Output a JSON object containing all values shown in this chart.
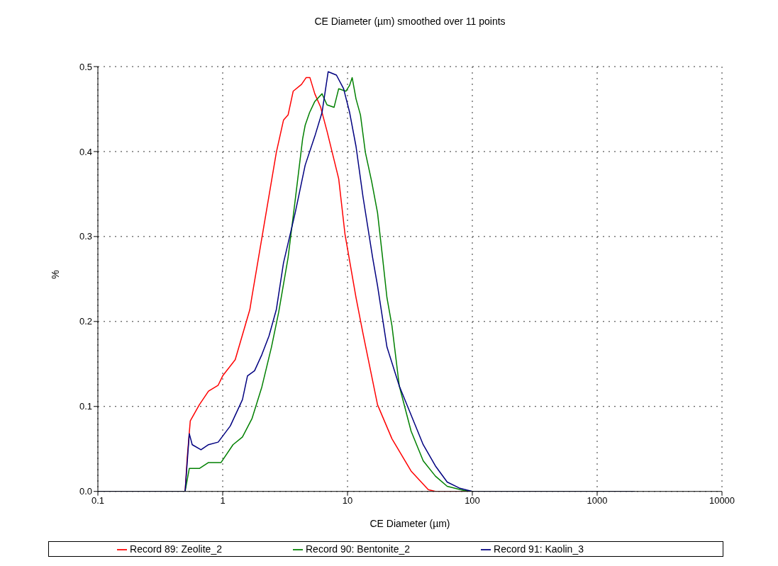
{
  "chart_data": {
    "type": "line",
    "title": "CE Diameter (µm) smoothed over 11 points",
    "xlabel": "CE Diameter (µm)",
    "ylabel": "%",
    "log": "x",
    "xlim": [
      0.1,
      10000
    ],
    "xticks": [
      0.1,
      1,
      10,
      100,
      1000,
      10000
    ],
    "ylim": [
      0,
      0.5
    ],
    "yticks": [
      {
        "value": 0,
        "label": "0.0"
      },
      0.1,
      0.2,
      0.3,
      0.4,
      0.5
    ],
    "grid": true,
    "legend": "bottom",
    "marker": "none",
    "line_style": "solid",
    "series": [
      {
        "name": "Record 89: Zeolite_2",
        "color": "#ff0000",
        "x": [
          0.1,
          0.5,
          0.52,
          0.55,
          0.65,
          0.77,
          0.92,
          1.0,
          1.26,
          1.65,
          1.71,
          2.69,
          3.07,
          3.34,
          3.67,
          4.28,
          4.66,
          5.0,
          5.47,
          6.1,
          6.85,
          8.5,
          9.54,
          11.7,
          13.3,
          17.4,
          22.7,
          32.3,
          44.4,
          50.6,
          2000
        ],
        "values": [
          0,
          0,
          0.04,
          0.083,
          0.102,
          0.118,
          0.125,
          0.136,
          0.155,
          0.214,
          0.228,
          0.399,
          0.437,
          0.443,
          0.471,
          0.479,
          0.487,
          0.487,
          0.468,
          0.452,
          0.424,
          0.368,
          0.303,
          0.228,
          0.186,
          0.102,
          0.062,
          0.024,
          0.002,
          0,
          0
        ]
      },
      {
        "name": "Record 90: Bentonite_2",
        "color": "#008000",
        "x": [
          0.1,
          0.5,
          0.54,
          0.65,
          0.77,
          0.88,
          0.97,
          1.21,
          1.44,
          1.72,
          2.06,
          2.46,
          2.81,
          3.34,
          3.81,
          4.37,
          4.58,
          4.97,
          5.47,
          6.25,
          6.85,
          7.8,
          8.5,
          9.7,
          10.4,
          10.9,
          11.7,
          12.7,
          13.9,
          15.6,
          17.4,
          19.1,
          20.7,
          22.7,
          26.0,
          32.3,
          40.4,
          50.6,
          62.9,
          86,
          100,
          2000
        ],
        "values": [
          0,
          0,
          0.027,
          0.027,
          0.034,
          0.034,
          0.034,
          0.055,
          0.064,
          0.086,
          0.123,
          0.17,
          0.211,
          0.275,
          0.343,
          0.415,
          0.431,
          0.446,
          0.459,
          0.468,
          0.455,
          0.452,
          0.474,
          0.471,
          0.478,
          0.487,
          0.462,
          0.443,
          0.399,
          0.365,
          0.328,
          0.275,
          0.228,
          0.195,
          0.124,
          0.071,
          0.036,
          0.018,
          0.006,
          0.001,
          0,
          0
        ]
      },
      {
        "name": "Record 91: Kaolin_3",
        "color": "#000080",
        "x": [
          0.1,
          0.5,
          0.54,
          0.57,
          0.67,
          0.77,
          0.92,
          1.15,
          1.44,
          1.58,
          1.8,
          2.06,
          2.35,
          2.69,
          3.07,
          3.81,
          4.58,
          5.47,
          6.25,
          7.0,
          8.15,
          9.3,
          10.4,
          11.7,
          13.3,
          15.9,
          17.4,
          20.7,
          26.0,
          32.3,
          40.4,
          50.6,
          62.9,
          78.6,
          100,
          2000
        ],
        "values": [
          0,
          0,
          0.068,
          0.055,
          0.049,
          0.055,
          0.058,
          0.077,
          0.108,
          0.136,
          0.142,
          0.161,
          0.183,
          0.214,
          0.269,
          0.328,
          0.384,
          0.418,
          0.446,
          0.494,
          0.49,
          0.474,
          0.446,
          0.406,
          0.347,
          0.275,
          0.242,
          0.17,
          0.124,
          0.09,
          0.055,
          0.03,
          0.011,
          0.004,
          0,
          0
        ]
      }
    ]
  }
}
